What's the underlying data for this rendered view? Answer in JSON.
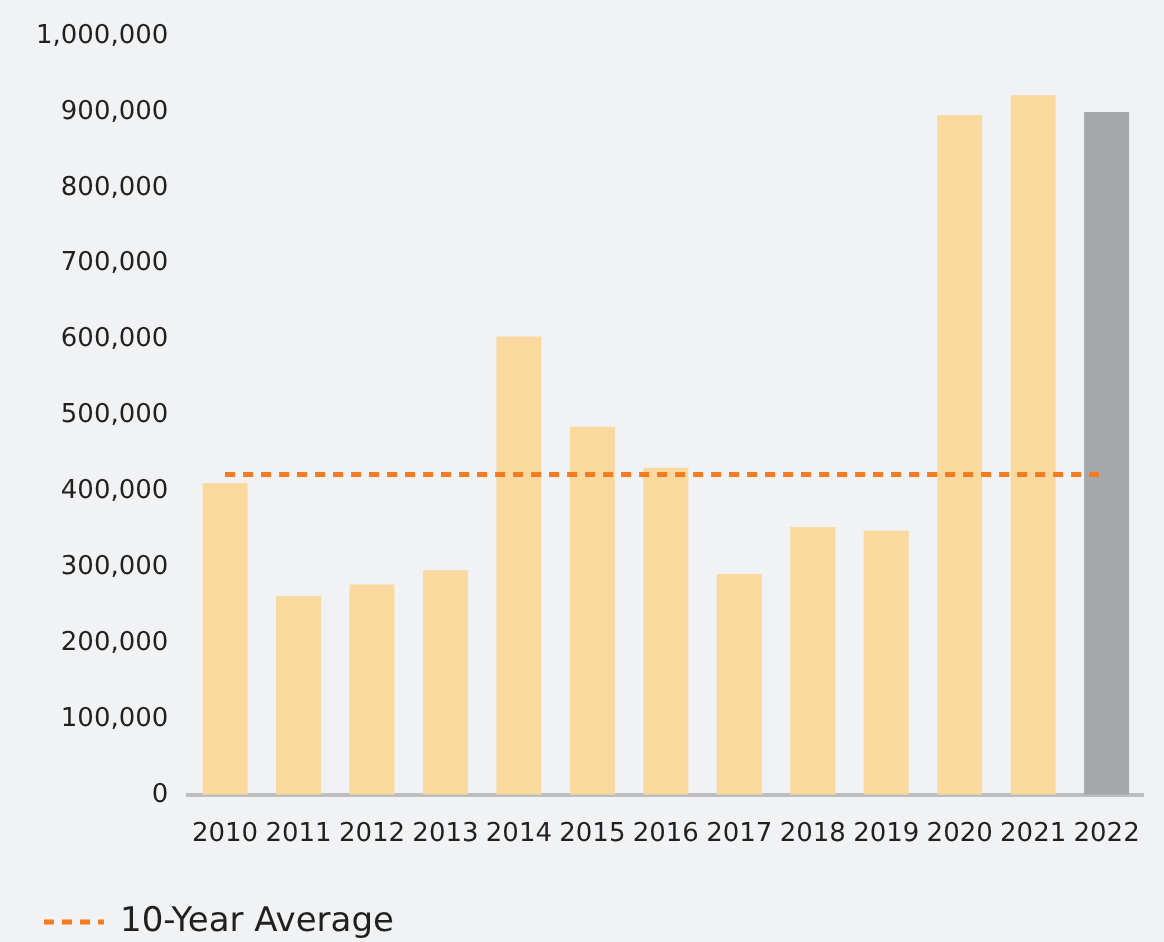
{
  "chart_data": {
    "type": "bar",
    "categories": [
      "2010",
      "2011",
      "2012",
      "2013",
      "2014",
      "2015",
      "2016",
      "2017",
      "2018",
      "2019",
      "2020",
      "2021",
      "2022"
    ],
    "values": [
      411000,
      262000,
      277000,
      296000,
      604000,
      485000,
      431000,
      291000,
      353000,
      348000,
      896000,
      922000,
      900000
    ],
    "colors": [
      "#f9d99e",
      "#f9d99e",
      "#f9d99e",
      "#f9d99e",
      "#f9d99e",
      "#f9d99e",
      "#f9d99e",
      "#f9d99e",
      "#f9d99e",
      "#f9d99e",
      "#f9d99e",
      "#f9d99e",
      "#a6a7ab"
    ],
    "ylim": [
      0,
      1000000
    ],
    "yticks": [
      0,
      {
        "value": 100000,
        "label": "100,000"
      },
      {
        "value": 200000,
        "label": "200,000"
      },
      {
        "value": 300000,
        "label": "300,000"
      },
      {
        "value": 400000,
        "label": "400,000"
      },
      {
        "value": 500000,
        "label": "500,000"
      },
      {
        "value": 600000,
        "label": "600,000"
      },
      {
        "value": 700000,
        "label": "700,000"
      },
      {
        "value": 800000,
        "label": "800,000"
      },
      {
        "value": 900000,
        "label": "900,000"
      },
      {
        "value": 1000000,
        "label": "1,000,000"
      }
    ],
    "ref_lines": [
      {
        "axis": "y",
        "value": 422000,
        "label": "10-Year Average",
        "color": "#f47b20",
        "line_style": "dashed"
      }
    ],
    "legend": "bottom left"
  }
}
